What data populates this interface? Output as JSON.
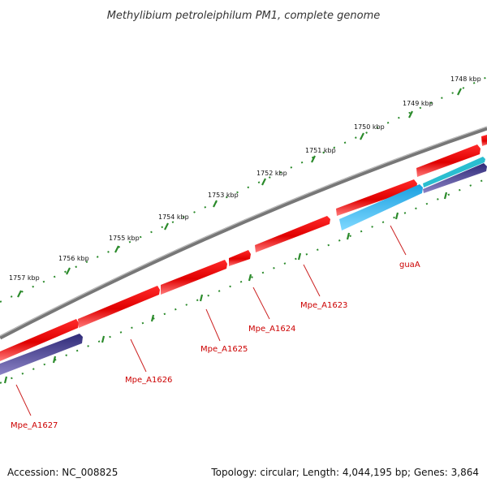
{
  "title": "Methylibium petroleiphilum PM1, complete genome",
  "footer": {
    "accession": "Accession: NC_008825",
    "summary": "Topology: circular; Length: 4,044,195 bp; Genes: 3,864"
  },
  "colors": {
    "backbone": "#7a7a7a",
    "forward_gene": "#ee1111",
    "reverse_gene": "#3d3580",
    "rna_gene": "#1ab0e8",
    "tick": "#2a8a2a",
    "label": "#cc0000"
  },
  "scale_labels": [
    {
      "kbp": 1748,
      "label": "1748 kbp"
    },
    {
      "kbp": 1749,
      "label": "1749 kbp"
    },
    {
      "kbp": 1750,
      "label": "1750 kbp"
    },
    {
      "kbp": 1751,
      "label": "1751 kbp"
    },
    {
      "kbp": 1752,
      "label": "1752 kbp"
    },
    {
      "kbp": 1753,
      "label": "1753 kbp"
    },
    {
      "kbp": 1754,
      "label": "1754 kbp"
    },
    {
      "kbp": 1755,
      "label": "1755 kbp"
    },
    {
      "kbp": 1756,
      "label": "1756 kbp"
    },
    {
      "kbp": 1757,
      "label": "1757 kbp"
    }
  ],
  "gene_labels": [
    {
      "id": "gene-guaA",
      "text": "guaA"
    },
    {
      "id": "gene-mpe-a1623",
      "text": "Mpe_A1623"
    },
    {
      "id": "gene-mpe-a1624",
      "text": "Mpe_A1624"
    },
    {
      "id": "gene-mpe-a1625",
      "text": "Mpe_A1625"
    },
    {
      "id": "gene-mpe-a1626",
      "text": "Mpe_A1626"
    },
    {
      "id": "gene-mpe-a1627",
      "text": "Mpe_A1627"
    }
  ]
}
